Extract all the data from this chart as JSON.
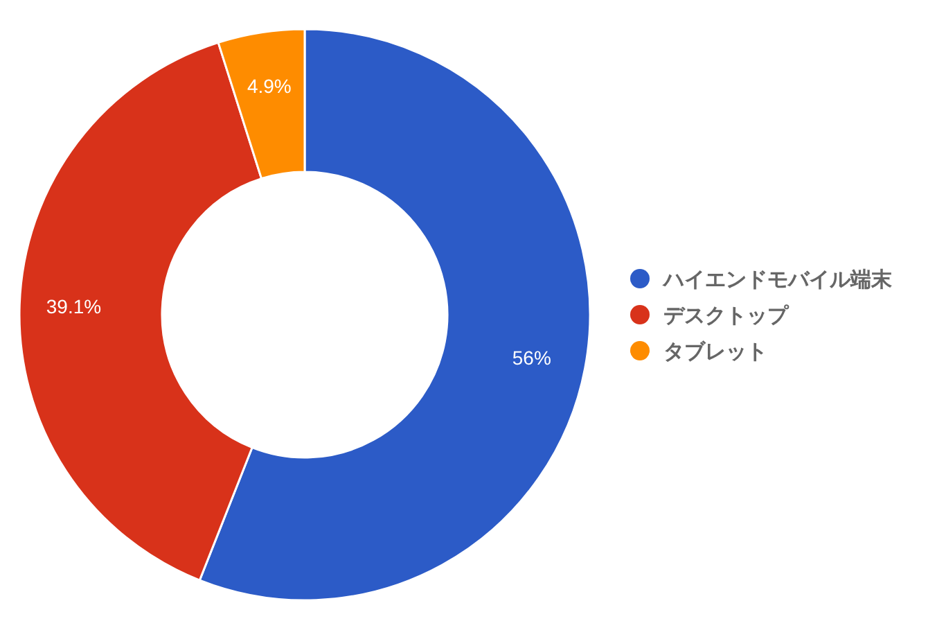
{
  "chart_data": {
    "type": "donut",
    "categories": [
      "ハイエンドモバイル端末",
      "デスクトップ",
      "タブレット"
    ],
    "values": [
      56,
      39.1,
      4.9
    ],
    "colors": [
      "#2c5bc7",
      "#d8321a",
      "#fe8c00"
    ],
    "value_labels": [
      "56%",
      "39.1%",
      "4.9%"
    ],
    "legend": "right"
  }
}
